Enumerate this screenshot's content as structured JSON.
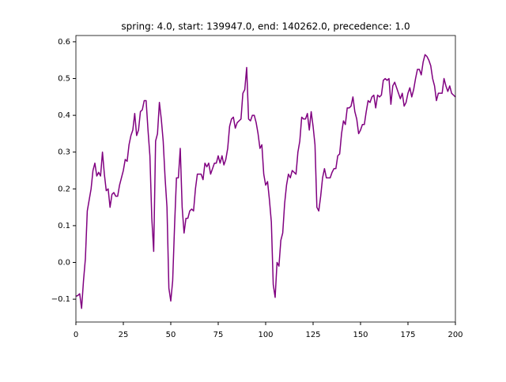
{
  "chart_data": {
    "type": "line",
    "title": "spring: 4.0, start: 139947.0, end: 140262.0, precedence: 1.0",
    "x": [
      0,
      1,
      2,
      3,
      4,
      5,
      6,
      7,
      8,
      9,
      10,
      11,
      12,
      13,
      14,
      15,
      16,
      17,
      18,
      19,
      20,
      21,
      22,
      23,
      24,
      25,
      26,
      27,
      28,
      29,
      30,
      31,
      32,
      33,
      34,
      35,
      36,
      37,
      38,
      39,
      40,
      41,
      42,
      43,
      44,
      45,
      46,
      47,
      48,
      49,
      50,
      51,
      52,
      53,
      54,
      55,
      56,
      57,
      58,
      59,
      60,
      61,
      62,
      63,
      64,
      65,
      66,
      67,
      68,
      69,
      70,
      71,
      72,
      73,
      74,
      75,
      76,
      77,
      78,
      79,
      80,
      81,
      82,
      83,
      84,
      85,
      86,
      87,
      88,
      89,
      90,
      91,
      92,
      93,
      94,
      95,
      96,
      97,
      98,
      99,
      100,
      101,
      102,
      103,
      104,
      105,
      106,
      107,
      108,
      109,
      110,
      111,
      112,
      113,
      114,
      115,
      116,
      117,
      118,
      119,
      120,
      121,
      122,
      123,
      124,
      125,
      126,
      127,
      128,
      129,
      130,
      131,
      132,
      133,
      134,
      135,
      136,
      137,
      138,
      139,
      140,
      141,
      142,
      143,
      144,
      145,
      146,
      147,
      148,
      149,
      150,
      151,
      152,
      153,
      154,
      155,
      156,
      157,
      158,
      159,
      160,
      161,
      162,
      163,
      164,
      165,
      166,
      167,
      168,
      169,
      170,
      171,
      172,
      173,
      174,
      175,
      176,
      177,
      178,
      179,
      180,
      181,
      182,
      183,
      184,
      185,
      186,
      187,
      188,
      189,
      190,
      191,
      192,
      193,
      194,
      195,
      196,
      197,
      198,
      199,
      200
    ],
    "series": [
      {
        "color": "#800080",
        "values": [
          -0.092,
          -0.09,
          -0.085,
          -0.125,
          -0.05,
          0.01,
          0.14,
          0.17,
          0.2,
          0.25,
          0.27,
          0.235,
          0.245,
          0.235,
          0.3,
          0.24,
          0.195,
          0.2,
          0.15,
          0.185,
          0.19,
          0.18,
          0.18,
          0.21,
          0.23,
          0.25,
          0.28,
          0.275,
          0.32,
          0.345,
          0.36,
          0.405,
          0.345,
          0.36,
          0.41,
          0.415,
          0.44,
          0.44,
          0.36,
          0.29,
          0.12,
          0.03,
          0.33,
          0.35,
          0.435,
          0.39,
          0.33,
          0.23,
          0.15,
          -0.07,
          -0.105,
          -0.05,
          0.1,
          0.23,
          0.23,
          0.31,
          0.15,
          0.08,
          0.12,
          0.12,
          0.14,
          0.145,
          0.14,
          0.2,
          0.24,
          0.24,
          0.24,
          0.225,
          0.27,
          0.26,
          0.27,
          0.24,
          0.255,
          0.27,
          0.27,
          0.29,
          0.27,
          0.29,
          0.265,
          0.28,
          0.31,
          0.37,
          0.39,
          0.395,
          0.365,
          0.38,
          0.385,
          0.39,
          0.46,
          0.47,
          0.53,
          0.39,
          0.385,
          0.4,
          0.4,
          0.38,
          0.35,
          0.31,
          0.32,
          0.24,
          0.21,
          0.22,
          0.17,
          0.11,
          -0.06,
          -0.095,
          0.0,
          -0.01,
          0.06,
          0.08,
          0.16,
          0.21,
          0.24,
          0.23,
          0.25,
          0.245,
          0.24,
          0.3,
          0.33,
          0.395,
          0.39,
          0.39,
          0.405,
          0.36,
          0.41,
          0.37,
          0.32,
          0.15,
          0.14,
          0.18,
          0.23,
          0.255,
          0.23,
          0.23,
          0.23,
          0.245,
          0.255,
          0.255,
          0.29,
          0.295,
          0.35,
          0.385,
          0.375,
          0.42,
          0.42,
          0.425,
          0.45,
          0.41,
          0.39,
          0.35,
          0.36,
          0.375,
          0.375,
          0.41,
          0.44,
          0.435,
          0.45,
          0.455,
          0.42,
          0.455,
          0.45,
          0.455,
          0.495,
          0.5,
          0.495,
          0.5,
          0.43,
          0.48,
          0.49,
          0.475,
          0.46,
          0.445,
          0.46,
          0.425,
          0.435,
          0.46,
          0.475,
          0.45,
          0.47,
          0.5,
          0.525,
          0.525,
          0.51,
          0.545,
          0.565,
          0.56,
          0.55,
          0.535,
          0.5,
          0.48,
          0.44,
          0.46,
          0.46,
          0.46,
          0.5,
          0.48,
          0.465,
          0.48,
          0.46,
          0.455,
          0.45
        ]
      }
    ],
    "xlim": [
      0,
      200
    ],
    "xticks": [
      0,
      25,
      50,
      75,
      100,
      125,
      150,
      175,
      200
    ],
    "ylim": [
      -0.162,
      0.617
    ],
    "yticks": [
      {
        "value": -0.1,
        "label": "−0.1"
      },
      {
        "value": 0.0,
        "label": "0.0"
      },
      {
        "value": 0.1,
        "label": "0.1"
      },
      {
        "value": 0.2,
        "label": "0.2"
      },
      {
        "value": 0.3,
        "label": "0.3"
      },
      {
        "value": 0.4,
        "label": "0.4"
      },
      {
        "value": 0.5,
        "label": "0.5"
      },
      {
        "value": 0.6,
        "label": "0.6"
      }
    ],
    "grid": false
  }
}
